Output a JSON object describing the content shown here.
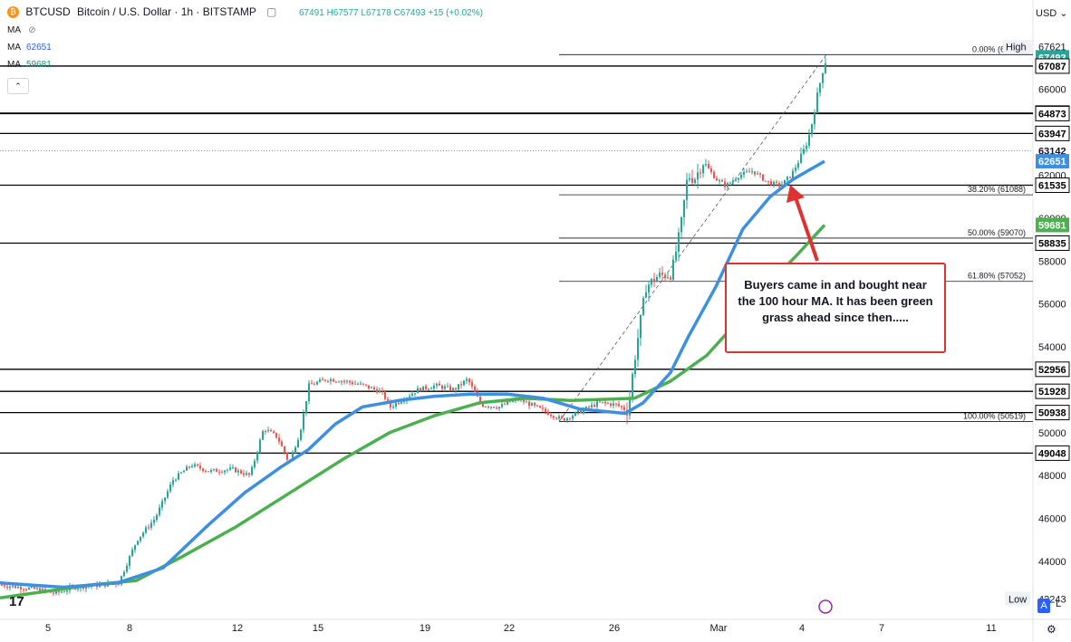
{
  "header": {
    "symbol": "BTCUSD",
    "title": "Bitcoin / U.S. Dollar · 1h · BITSTAMP",
    "ohlc": "67491 H67577 L67178 C67493 +15 (+0.02%)"
  },
  "indicators": [
    {
      "label": "MA",
      "value": ""
    },
    {
      "label": "MA",
      "value": "62651"
    },
    {
      "label": "MA",
      "value": "59681"
    }
  ],
  "currency": "USD",
  "annotation": "Buyers came in and bought near the 100 hour MA.  It has been green grass ahead since then.....",
  "colors": {
    "up": "#26a69a",
    "down": "#ef5350",
    "ma100": "#3d8fe0",
    "ma200": "#4caf50",
    "arrow": "#e03131",
    "level": "#000000"
  },
  "chart_data": {
    "type": "candlestick",
    "x_tick_labels": [
      "5",
      "8",
      "12",
      "15",
      "19",
      "22",
      "26",
      "Mar",
      "4",
      "7",
      "11"
    ],
    "y_tick_labels": [
      66000,
      64000,
      62000,
      60000,
      58000,
      56000,
      54000,
      52000,
      50000,
      48000,
      46000,
      44000
    ],
    "ylim": [
      41300,
      68900
    ],
    "high_label": {
      "label": "High",
      "value": 67621
    },
    "low_label": {
      "label": "Low",
      "value": 42243
    },
    "current_price": 67493,
    "levels": [
      67087,
      64895,
      64873,
      63947,
      61535,
      58835,
      52956,
      51928,
      50938,
      49048
    ],
    "dotted_level": 63142,
    "ma_values": [
      62651,
      59681
    ],
    "fib_levels": [
      {
        "label": "0.00% (67621)",
        "value": 67621
      },
      {
        "label": "38.20% (61088)",
        "value": 61088
      },
      {
        "label": "50.00% (59070)",
        "value": 59070
      },
      {
        "label": "61.80% (57052)",
        "value": 57052
      },
      {
        "label": "100.00% (50519)",
        "value": 50519
      }
    ],
    "price_path": [
      [
        0,
        42900
      ],
      [
        40,
        42700
      ],
      [
        60,
        42500
      ],
      [
        80,
        42800
      ],
      [
        110,
        42900
      ],
      [
        130,
        43000
      ],
      [
        150,
        45000
      ],
      [
        170,
        46000
      ],
      [
        190,
        47800
      ],
      [
        210,
        48500
      ],
      [
        230,
        48200
      ],
      [
        255,
        48300
      ],
      [
        275,
        48000
      ],
      [
        290,
        50200
      ],
      [
        305,
        49800
      ],
      [
        318,
        48600
      ],
      [
        330,
        50000
      ],
      [
        340,
        52200
      ],
      [
        360,
        52500
      ],
      [
        380,
        52400
      ],
      [
        400,
        52200
      ],
      [
        420,
        51900
      ],
      [
        430,
        51200
      ],
      [
        445,
        51600
      ],
      [
        460,
        52000
      ],
      [
        480,
        52200
      ],
      [
        500,
        52000
      ],
      [
        515,
        52500
      ],
      [
        530,
        51300
      ],
      [
        550,
        51200
      ],
      [
        570,
        51600
      ],
      [
        590,
        51200
      ],
      [
        610,
        50800
      ],
      [
        620,
        50600
      ],
      [
        640,
        51000
      ],
      [
        660,
        51400
      ],
      [
        680,
        51300
      ],
      [
        692,
        51000
      ],
      [
        698,
        53000
      ],
      [
        705,
        55000
      ],
      [
        712,
        56800
      ],
      [
        725,
        57300
      ],
      [
        740,
        57400
      ],
      [
        750,
        59500
      ],
      [
        758,
        62000
      ],
      [
        765,
        61800
      ],
      [
        775,
        62600
      ],
      [
        790,
        61800
      ],
      [
        800,
        61500
      ],
      [
        815,
        62000
      ],
      [
        830,
        62200
      ],
      [
        845,
        61700
      ],
      [
        860,
        61500
      ],
      [
        872,
        62000
      ],
      [
        885,
        63000
      ],
      [
        893,
        64000
      ],
      [
        900,
        65500
      ],
      [
        908,
        67100
      ],
      [
        912,
        67500
      ]
    ],
    "ma100_path": [
      [
        0,
        43000
      ],
      [
        70,
        42800
      ],
      [
        130,
        43000
      ],
      [
        180,
        43700
      ],
      [
        230,
        45700
      ],
      [
        270,
        47200
      ],
      [
        310,
        48400
      ],
      [
        340,
        49200
      ],
      [
        370,
        50400
      ],
      [
        400,
        51200
      ],
      [
        440,
        51500
      ],
      [
        480,
        51700
      ],
      [
        520,
        51800
      ],
      [
        560,
        51800
      ],
      [
        600,
        51600
      ],
      [
        640,
        51100
      ],
      [
        690,
        50900
      ],
      [
        710,
        51400
      ],
      [
        740,
        52800
      ],
      [
        760,
        54500
      ],
      [
        790,
        56800
      ],
      [
        820,
        59500
      ],
      [
        850,
        61000
      ],
      [
        875,
        61800
      ],
      [
        910,
        62651
      ]
    ],
    "ma200_path": [
      [
        0,
        42300
      ],
      [
        100,
        42900
      ],
      [
        150,
        43100
      ],
      [
        200,
        44200
      ],
      [
        260,
        45600
      ],
      [
        320,
        47200
      ],
      [
        380,
        48800
      ],
      [
        430,
        50000
      ],
      [
        480,
        50800
      ],
      [
        530,
        51400
      ],
      [
        580,
        51600
      ],
      [
        630,
        51500
      ],
      [
        700,
        51600
      ],
      [
        740,
        52400
      ],
      [
        780,
        53600
      ],
      [
        810,
        55000
      ],
      [
        850,
        57000
      ],
      [
        880,
        58300
      ],
      [
        910,
        59681
      ]
    ]
  }
}
